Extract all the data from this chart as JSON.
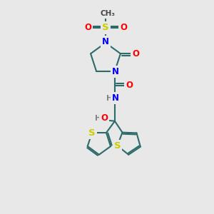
{
  "bg_color": "#e8e8e8",
  "bond_color": "#2d6b6b",
  "bond_width": 1.5,
  "atom_colors": {
    "N": "#0000ee",
    "O": "#ff0000",
    "S": "#cccc00",
    "H": "#808080",
    "C": "#000000"
  },
  "font_size": 8.5,
  "fig_size": [
    3.0,
    3.0
  ],
  "dpi": 100
}
